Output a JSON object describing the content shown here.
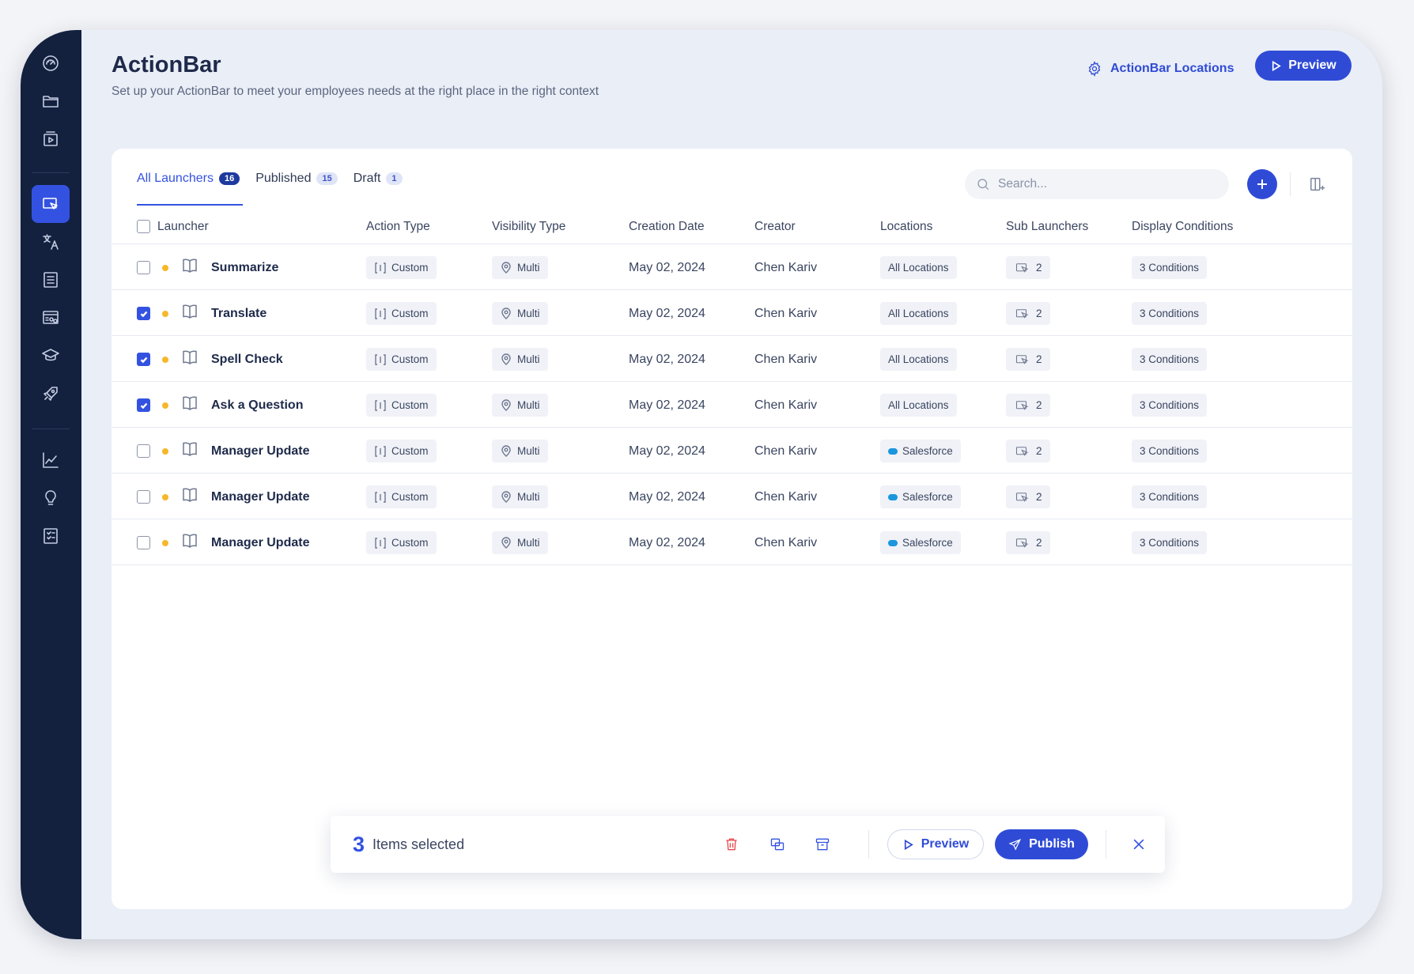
{
  "app": {
    "title": "ActionBar",
    "subtitle": "Set up your ActionBar to meet your employees needs at the right place in the right context"
  },
  "header": {
    "locations_label": "ActionBar Locations",
    "preview_label": "Preview"
  },
  "sidebar": {
    "items": [
      {
        "icon": "dashboard-icon"
      },
      {
        "icon": "folder-icon"
      },
      {
        "icon": "media-icon"
      },
      {
        "icon": "actionbar-icon",
        "active": true
      },
      {
        "icon": "translate-icon"
      },
      {
        "icon": "list-icon"
      },
      {
        "icon": "resources-icon"
      },
      {
        "icon": "learning-icon"
      },
      {
        "icon": "rocket-icon"
      },
      {
        "icon": "analytics-icon"
      },
      {
        "icon": "insights-icon"
      },
      {
        "icon": "checklist-icon"
      }
    ]
  },
  "tabs": [
    {
      "label": "All Launchers",
      "count": "16"
    },
    {
      "label": "Published",
      "count": "15"
    },
    {
      "label": "Draft",
      "count": "1"
    }
  ],
  "search": {
    "placeholder": "Search..."
  },
  "columns": [
    "Launcher",
    "Action Type",
    "Visibility Type",
    "Creation Date",
    "Creator",
    "Locations",
    "Sub Launchers",
    "Display Conditions"
  ],
  "rows": [
    {
      "name": "Summarize",
      "checked": false,
      "action": "Custom",
      "visibility": "Multi",
      "date": "May 02, 2024",
      "creator": "Chen Kariv",
      "location": "All Locations",
      "sub": "2",
      "conditions": "3 Conditions"
    },
    {
      "name": "Translate",
      "checked": true,
      "action": "Custom",
      "visibility": "Multi",
      "date": "May 02, 2024",
      "creator": "Chen Kariv",
      "location": "All Locations",
      "sub": "2",
      "conditions": "3 Conditions"
    },
    {
      "name": "Spell Check",
      "checked": true,
      "action": "Custom",
      "visibility": "Multi",
      "date": "May 02, 2024",
      "creator": "Chen Kariv",
      "location": "All Locations",
      "sub": "2",
      "conditions": "3 Conditions"
    },
    {
      "name": "Ask a Question",
      "checked": true,
      "action": "Custom",
      "visibility": "Multi",
      "date": "May 02, 2024",
      "creator": "Chen Kariv",
      "location": "All Locations",
      "sub": "2",
      "conditions": "3 Conditions"
    },
    {
      "name": "Manager Update",
      "checked": false,
      "action": "Custom",
      "visibility": "Multi",
      "date": "May 02, 2024",
      "creator": "Chen Kariv",
      "location": "Salesforce",
      "sub": "2",
      "conditions": "3 Conditions"
    },
    {
      "name": "Manager Update",
      "checked": false,
      "action": "Custom",
      "visibility": "Multi",
      "date": "May 02, 2024",
      "creator": "Chen Kariv",
      "location": "Salesforce",
      "sub": "2",
      "conditions": "3 Conditions"
    },
    {
      "name": "Manager Update",
      "checked": false,
      "action": "Custom",
      "visibility": "Multi",
      "date": "May 02, 2024",
      "creator": "Chen Kariv",
      "location": "Salesforce",
      "sub": "2",
      "conditions": "3 Conditions"
    }
  ],
  "selection": {
    "count": "3",
    "label": "Items selected",
    "preview_label": "Preview",
    "publish_label": "Publish"
  },
  "colors": {
    "accent": "#2f4bd6",
    "sidebar": "#13213f",
    "draft_dot": "#f6b72b",
    "danger": "#e5484d",
    "salesforce": "#1b96de"
  }
}
